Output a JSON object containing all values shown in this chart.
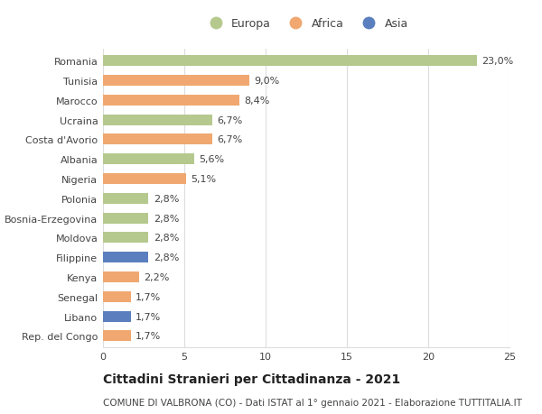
{
  "countries": [
    "Romania",
    "Tunisia",
    "Marocco",
    "Ucraina",
    "Costa d'Avorio",
    "Albania",
    "Nigeria",
    "Polonia",
    "Bosnia-Erzegovina",
    "Moldova",
    "Filippine",
    "Kenya",
    "Senegal",
    "Libano",
    "Rep. del Congo"
  ],
  "values": [
    23.0,
    9.0,
    8.4,
    6.7,
    6.7,
    5.6,
    5.1,
    2.8,
    2.8,
    2.8,
    2.8,
    2.2,
    1.7,
    1.7,
    1.7
  ],
  "labels": [
    "23,0%",
    "9,0%",
    "8,4%",
    "6,7%",
    "6,7%",
    "5,6%",
    "5,1%",
    "2,8%",
    "2,8%",
    "2,8%",
    "2,8%",
    "2,2%",
    "1,7%",
    "1,7%",
    "1,7%"
  ],
  "continents": [
    "Europa",
    "Africa",
    "Africa",
    "Europa",
    "Africa",
    "Europa",
    "Africa",
    "Europa",
    "Europa",
    "Europa",
    "Asia",
    "Africa",
    "Africa",
    "Asia",
    "Africa"
  ],
  "colors": {
    "Europa": "#b5c98e",
    "Africa": "#f0a870",
    "Asia": "#5b7fbe"
  },
  "xlim": [
    0,
    25
  ],
  "xticks": [
    0,
    5,
    10,
    15,
    20,
    25
  ],
  "title_main": "Cittadini Stranieri per Cittadinanza - 2021",
  "title_sub": "COMUNE DI VALBRONA (CO) - Dati ISTAT al 1° gennaio 2021 - Elaborazione TUTTITALIA.IT",
  "background_color": "#ffffff",
  "bar_height": 0.55,
  "grid_color": "#dddddd",
  "text_color": "#444444",
  "label_fontsize": 8,
  "tick_fontsize": 8,
  "title_fontsize": 10,
  "subtitle_fontsize": 7.5
}
